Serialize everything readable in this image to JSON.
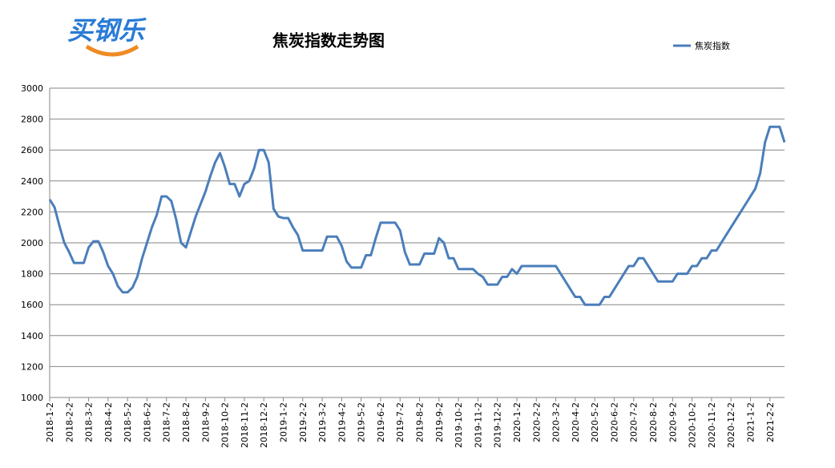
{
  "logo": "买钢乐",
  "chart_data": {
    "type": "line",
    "title": "焦炭指数走势图",
    "categories": [
      "2018-1-2",
      null,
      null,
      null,
      "2018-2-2",
      null,
      null,
      null,
      "2018-3-2",
      null,
      null,
      null,
      "2018-4-2",
      null,
      null,
      null,
      "2018-5-2",
      null,
      null,
      null,
      "2018-6-2",
      null,
      null,
      null,
      "2018-7-2",
      null,
      null,
      null,
      "2018-8-2",
      null,
      null,
      null,
      "2018-9-2",
      null,
      null,
      null,
      "2018-10-2",
      null,
      null,
      null,
      "2018-11-2",
      null,
      null,
      null,
      "2018-12-2",
      null,
      null,
      null,
      "2019-1-2",
      null,
      null,
      null,
      "2019-2-2",
      null,
      null,
      null,
      "2019-3-2",
      null,
      null,
      null,
      "2019-4-2",
      null,
      null,
      null,
      "2019-5-2",
      null,
      null,
      null,
      "2019-6-2",
      null,
      null,
      null,
      "2019-7-2",
      null,
      null,
      null,
      "2019-8-2",
      null,
      null,
      null,
      "2019-9-2",
      null,
      null,
      null,
      "2019-10-2",
      null,
      null,
      null,
      "2019-11-2",
      null,
      null,
      null,
      "2019-12-2",
      null,
      null,
      null,
      "2020-1-2",
      null,
      null,
      null,
      "2020-2-2",
      null,
      null,
      null,
      "2020-3-2",
      null,
      null,
      null,
      "2020-4-2",
      null,
      null,
      null,
      "2020-5-2",
      null,
      null,
      null,
      "2020-6-2",
      null,
      null,
      null,
      "2020-7-2",
      null,
      null,
      null,
      "2020-8-2",
      null,
      null,
      null,
      "2020-9-2",
      null,
      null,
      null,
      "2020-10-2",
      null,
      null,
      null,
      "2020-11-2",
      null,
      null,
      null,
      "2020-12-2",
      null,
      null,
      null,
      "2021-1-2",
      null,
      null,
      null,
      "2021-2-2",
      null,
      null,
      null
    ],
    "series": [
      {
        "name": "焦炭指数",
        "color": "#4a7ebb",
        "values": [
          2280,
          2230,
          2110,
          2000,
          1940,
          1870,
          1870,
          1870,
          1970,
          2010,
          2010,
          1940,
          1850,
          1800,
          1720,
          1680,
          1680,
          1710,
          1780,
          1900,
          2000,
          2100,
          2180,
          2300,
          2300,
          2270,
          2150,
          2000,
          1970,
          2070,
          2170,
          2250,
          2330,
          2430,
          2520,
          2580,
          2490,
          2380,
          2380,
          2300,
          2380,
          2400,
          2480,
          2600,
          2600,
          2520,
          2220,
          2170,
          2160,
          2160,
          2100,
          2050,
          1950,
          1950,
          1950,
          1950,
          1950,
          2040,
          2040,
          2040,
          1980,
          1880,
          1840,
          1840,
          1840,
          1920,
          1920,
          2030,
          2130,
          2130,
          2130,
          2130,
          2080,
          1940,
          1860,
          1860,
          1860,
          1930,
          1930,
          1930,
          2030,
          2000,
          1900,
          1900,
          1830,
          1830,
          1830,
          1830,
          1800,
          1780,
          1730,
          1730,
          1730,
          1780,
          1780,
          1830,
          1800,
          1850,
          1850,
          1850,
          1850,
          1850,
          1850,
          1850,
          1850,
          1800,
          1750,
          1700,
          1650,
          1650,
          1600,
          1600,
          1600,
          1600,
          1650,
          1650,
          1700,
          1750,
          1800,
          1850,
          1850,
          1900,
          1900,
          1850,
          1800,
          1750,
          1750,
          1750,
          1750,
          1800,
          1800,
          1800,
          1850,
          1850,
          1900,
          1900,
          1950,
          1950,
          2000,
          2050,
          2100,
          2150,
          2200,
          2250,
          2300,
          2350,
          2450,
          2650,
          2750,
          2750,
          2750,
          2650
        ]
      }
    ],
    "ylim": [
      1000,
      3000
    ],
    "yticks": [
      1000,
      1200,
      1400,
      1600,
      1800,
      2000,
      2200,
      2400,
      2600,
      2800,
      3000
    ],
    "grid": true,
    "legend": "top-right"
  }
}
